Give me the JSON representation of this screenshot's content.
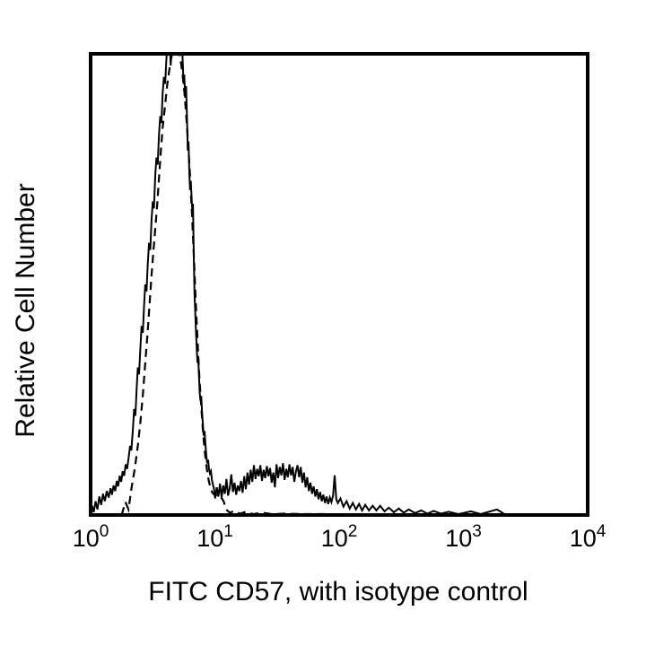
{
  "figure": {
    "background_color": "#ffffff",
    "frame_color": "#000000",
    "curve_color": "#000000"
  },
  "chart_data": {
    "type": "line",
    "subtype": "flow-cytometry-overlay-histogram",
    "title": "",
    "xlabel": "FITC CD57, with isotype control",
    "ylabel": "Relative Cell Number",
    "x_scale": "log10",
    "xlim_log": [
      0,
      4
    ],
    "ylim": [
      0,
      1
    ],
    "grid": false,
    "legend_position": "none",
    "x_ticks": [
      {
        "base": "10",
        "exp": "0",
        "log": 0
      },
      {
        "base": "10",
        "exp": "1",
        "log": 1
      },
      {
        "base": "10",
        "exp": "2",
        "log": 2
      },
      {
        "base": "10",
        "exp": "3",
        "log": 3
      },
      {
        "base": "10",
        "exp": "4",
        "log": 4
      }
    ],
    "y_ticks": [],
    "series": [
      {
        "name": "FITC CD57",
        "style": "solid",
        "color": "#000000",
        "points": [
          [
            0.0,
            0.0
          ],
          [
            0.012,
            0.02
          ],
          [
            0.025,
            0.006
          ],
          [
            0.04,
            0.03
          ],
          [
            0.055,
            0.012
          ],
          [
            0.07,
            0.04
          ],
          [
            0.085,
            0.022
          ],
          [
            0.1,
            0.046
          ],
          [
            0.115,
            0.03
          ],
          [
            0.13,
            0.052
          ],
          [
            0.145,
            0.038
          ],
          [
            0.16,
            0.058
          ],
          [
            0.172,
            0.044
          ],
          [
            0.185,
            0.064
          ],
          [
            0.198,
            0.052
          ],
          [
            0.21,
            0.074
          ],
          [
            0.222,
            0.062
          ],
          [
            0.234,
            0.085
          ],
          [
            0.246,
            0.072
          ],
          [
            0.258,
            0.095
          ],
          [
            0.27,
            0.085
          ],
          [
            0.282,
            0.11
          ],
          [
            0.294,
            0.1
          ],
          [
            0.306,
            0.125
          ],
          [
            0.318,
            0.15
          ],
          [
            0.328,
            0.14
          ],
          [
            0.34,
            0.185
          ],
          [
            0.35,
            0.23
          ],
          [
            0.36,
            0.215
          ],
          [
            0.37,
            0.27
          ],
          [
            0.38,
            0.32
          ],
          [
            0.39,
            0.305
          ],
          [
            0.4,
            0.36
          ],
          [
            0.41,
            0.41
          ],
          [
            0.42,
            0.395
          ],
          [
            0.43,
            0.455
          ],
          [
            0.44,
            0.5
          ],
          [
            0.45,
            0.485
          ],
          [
            0.46,
            0.545
          ],
          [
            0.47,
            0.59
          ],
          [
            0.48,
            0.575
          ],
          [
            0.49,
            0.64
          ],
          [
            0.5,
            0.68
          ],
          [
            0.51,
            0.665
          ],
          [
            0.52,
            0.735
          ],
          [
            0.53,
            0.775
          ],
          [
            0.54,
            0.76
          ],
          [
            0.55,
            0.825
          ],
          [
            0.56,
            0.865
          ],
          [
            0.57,
            0.85
          ],
          [
            0.58,
            0.915
          ],
          [
            0.59,
            0.95
          ],
          [
            0.6,
            0.935
          ],
          [
            0.61,
            0.99
          ],
          [
            0.622,
            1.03
          ],
          [
            0.635,
            1.03
          ],
          [
            0.645,
            0.975
          ],
          [
            0.655,
            1.03
          ],
          [
            0.67,
            1.03
          ],
          [
            0.685,
            1.03
          ],
          [
            0.7,
            1.03
          ],
          [
            0.715,
            1.03
          ],
          [
            0.73,
            1.03
          ],
          [
            0.74,
            0.99
          ],
          [
            0.748,
            0.935
          ],
          [
            0.754,
            0.955
          ],
          [
            0.76,
            0.905
          ],
          [
            0.768,
            0.93
          ],
          [
            0.775,
            0.87
          ],
          [
            0.782,
            0.79
          ],
          [
            0.788,
            0.81
          ],
          [
            0.794,
            0.745
          ],
          [
            0.8,
            0.705
          ],
          [
            0.806,
            0.725
          ],
          [
            0.812,
            0.69
          ],
          [
            0.818,
            0.66
          ],
          [
            0.824,
            0.675
          ],
          [
            0.83,
            0.56
          ],
          [
            0.836,
            0.48
          ],
          [
            0.842,
            0.44
          ],
          [
            0.848,
            0.4
          ],
          [
            0.854,
            0.36
          ],
          [
            0.86,
            0.33
          ],
          [
            0.866,
            0.345
          ],
          [
            0.872,
            0.3
          ],
          [
            0.878,
            0.265
          ],
          [
            0.884,
            0.248
          ],
          [
            0.89,
            0.258
          ],
          [
            0.896,
            0.225
          ],
          [
            0.903,
            0.198
          ],
          [
            0.91,
            0.172
          ],
          [
            0.917,
            0.182
          ],
          [
            0.924,
            0.152
          ],
          [
            0.931,
            0.13
          ],
          [
            0.938,
            0.112
          ],
          [
            0.945,
            0.12
          ],
          [
            0.952,
            0.1
          ],
          [
            0.96,
            0.09
          ],
          [
            0.968,
            0.095
          ],
          [
            0.976,
            0.076
          ],
          [
            0.984,
            0.066
          ],
          [
            0.992,
            0.058
          ],
          [
            1.002,
            0.036
          ],
          [
            1.015,
            0.06
          ],
          [
            1.028,
            0.04
          ],
          [
            1.041,
            0.068
          ],
          [
            1.054,
            0.038
          ],
          [
            1.067,
            0.064
          ],
          [
            1.08,
            0.046
          ],
          [
            1.093,
            0.078
          ],
          [
            1.106,
            0.042
          ],
          [
            1.119,
            0.058
          ],
          [
            1.132,
            0.088
          ],
          [
            1.145,
            0.05
          ],
          [
            1.158,
            0.07
          ],
          [
            1.171,
            0.044
          ],
          [
            1.184,
            0.064
          ],
          [
            1.197,
            0.052
          ],
          [
            1.21,
            0.074
          ],
          [
            1.223,
            0.048
          ],
          [
            1.236,
            0.084
          ],
          [
            1.249,
            0.056
          ],
          [
            1.262,
            0.092
          ],
          [
            1.275,
            0.066
          ],
          [
            1.288,
            0.098
          ],
          [
            1.301,
            0.072
          ],
          [
            1.314,
            0.108
          ],
          [
            1.327,
            0.078
          ],
          [
            1.34,
            0.1
          ],
          [
            1.353,
            0.084
          ],
          [
            1.366,
            0.108
          ],
          [
            1.379,
            0.074
          ],
          [
            1.392,
            0.098
          ],
          [
            1.405,
            0.08
          ],
          [
            1.418,
            0.106
          ],
          [
            1.431,
            0.084
          ],
          [
            1.444,
            0.102
          ],
          [
            1.457,
            0.07
          ],
          [
            1.47,
            0.092
          ],
          [
            1.483,
            0.06
          ],
          [
            1.496,
            0.11
          ],
          [
            1.509,
            0.08
          ],
          [
            1.522,
            0.104
          ],
          [
            1.535,
            0.086
          ],
          [
            1.548,
            0.112
          ],
          [
            1.561,
            0.076
          ],
          [
            1.574,
            0.1
          ],
          [
            1.587,
            0.082
          ],
          [
            1.6,
            0.11
          ],
          [
            1.613,
            0.086
          ],
          [
            1.626,
            0.104
          ],
          [
            1.639,
            0.072
          ],
          [
            1.652,
            0.094
          ],
          [
            1.665,
            0.108
          ],
          [
            1.678,
            0.082
          ],
          [
            1.691,
            0.104
          ],
          [
            1.704,
            0.07
          ],
          [
            1.717,
            0.092
          ],
          [
            1.73,
            0.06
          ],
          [
            1.743,
            0.082
          ],
          [
            1.756,
            0.052
          ],
          [
            1.769,
            0.07
          ],
          [
            1.782,
            0.046
          ],
          [
            1.795,
            0.062
          ],
          [
            1.808,
            0.04
          ],
          [
            1.821,
            0.056
          ],
          [
            1.834,
            0.034
          ],
          [
            1.847,
            0.05
          ],
          [
            1.86,
            0.03
          ],
          [
            1.873,
            0.044
          ],
          [
            1.886,
            0.026
          ],
          [
            1.899,
            0.04
          ],
          [
            1.912,
            0.024
          ],
          [
            1.925,
            0.038
          ],
          [
            1.938,
            0.028
          ],
          [
            1.951,
            0.042
          ],
          [
            1.964,
            0.086
          ],
          [
            1.977,
            0.034
          ],
          [
            1.99,
            0.026
          ],
          [
            2.01,
            0.036
          ],
          [
            2.035,
            0.018
          ],
          [
            2.06,
            0.03
          ],
          [
            2.085,
            0.014
          ],
          [
            2.11,
            0.026
          ],
          [
            2.135,
            0.012
          ],
          [
            2.16,
            0.024
          ],
          [
            2.185,
            0.01
          ],
          [
            2.21,
            0.022
          ],
          [
            2.24,
            0.01
          ],
          [
            2.27,
            0.02
          ],
          [
            2.3,
            0.01
          ],
          [
            2.33,
            0.02
          ],
          [
            2.365,
            0.008
          ],
          [
            2.4,
            0.016
          ],
          [
            2.44,
            0.006
          ],
          [
            2.48,
            0.014
          ],
          [
            2.52,
            0.005
          ],
          [
            2.56,
            0.012
          ],
          [
            2.61,
            0.004
          ],
          [
            2.66,
            0.01
          ],
          [
            2.71,
            0.003
          ],
          [
            2.76,
            0.009
          ],
          [
            2.82,
            0.003
          ],
          [
            2.88,
            0.007
          ],
          [
            2.96,
            0.002
          ],
          [
            3.06,
            0.008
          ],
          [
            3.14,
            0.002
          ],
          [
            3.27,
            0.012
          ],
          [
            3.33,
            0.002
          ],
          [
            3.5,
            0.002
          ],
          [
            3.7,
            0.002
          ],
          [
            3.88,
            0.002
          ],
          [
            4.0,
            0.0
          ]
        ]
      },
      {
        "name": "Isotype control",
        "style": "dashed",
        "color": "#000000",
        "points": [
          [
            0.25,
            0.0
          ],
          [
            0.28,
            0.028
          ],
          [
            0.305,
            0.012
          ],
          [
            0.33,
            0.06
          ],
          [
            0.355,
            0.1
          ],
          [
            0.38,
            0.15
          ],
          [
            0.4,
            0.2
          ],
          [
            0.42,
            0.26
          ],
          [
            0.44,
            0.33
          ],
          [
            0.46,
            0.4
          ],
          [
            0.475,
            0.46
          ],
          [
            0.49,
            0.52
          ],
          [
            0.505,
            0.57
          ],
          [
            0.52,
            0.62
          ],
          [
            0.535,
            0.67
          ],
          [
            0.55,
            0.73
          ],
          [
            0.565,
            0.79
          ],
          [
            0.58,
            0.84
          ],
          [
            0.6,
            0.89
          ],
          [
            0.615,
            0.93
          ],
          [
            0.63,
            0.96
          ],
          [
            0.645,
            0.985
          ],
          [
            0.66,
            1.005
          ],
          [
            0.71,
            1.005
          ],
          [
            0.725,
            0.985
          ],
          [
            0.74,
            0.955
          ],
          [
            0.755,
            0.915
          ],
          [
            0.77,
            0.865
          ],
          [
            0.785,
            0.805
          ],
          [
            0.8,
            0.735
          ],
          [
            0.815,
            0.655
          ],
          [
            0.83,
            0.565
          ],
          [
            0.845,
            0.47
          ],
          [
            0.86,
            0.38
          ],
          [
            0.875,
            0.3
          ],
          [
            0.89,
            0.235
          ],
          [
            0.905,
            0.18
          ],
          [
            0.92,
            0.135
          ],
          [
            0.935,
            0.1
          ],
          [
            0.95,
            0.075
          ],
          [
            0.965,
            0.058
          ],
          [
            0.98,
            0.048
          ],
          [
            1.0,
            0.043
          ],
          [
            1.04,
            0.043
          ],
          [
            1.07,
            0.03
          ],
          [
            1.09,
            0.012
          ],
          [
            1.12,
            0.005
          ],
          [
            1.16,
            0.009
          ],
          [
            1.2,
            0.003
          ],
          [
            1.25,
            0.007
          ],
          [
            1.31,
            0.002
          ],
          [
            1.38,
            0.005
          ],
          [
            1.46,
            0.002
          ],
          [
            1.56,
            0.003
          ],
          [
            1.7,
            0.002
          ],
          [
            1.9,
            0.002
          ],
          [
            2.2,
            0.001
          ],
          [
            2.6,
            0.001
          ],
          [
            3.0,
            0.001
          ],
          [
            3.5,
            0.001
          ],
          [
            4.0,
            0.0
          ]
        ]
      }
    ]
  }
}
